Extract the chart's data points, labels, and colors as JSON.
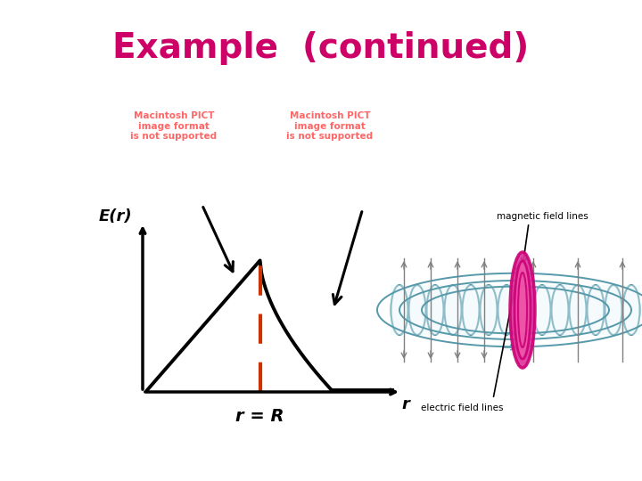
{
  "title": "Example  (continued)",
  "title_color": "#CC0066",
  "title_fontsize": 28,
  "bg_color": "#ffffff",
  "pict_text1": "Macintosh PICT\nimage format\nis not supported",
  "pict_text2": "Macintosh PICT\nimage format\nis not supported",
  "pict_color": "#FF6666",
  "Er_label": "E(r)",
  "r_label": "r",
  "rR_label": "r = R",
  "dashed_color": "#CC3300",
  "mag_label": "magnetic field lines",
  "elec_label": "electric field lines",
  "curve_color": "#000000",
  "coil_color": "#5599AA",
  "magenta_color": "#CC0077",
  "axis_lw": 2.5,
  "curve_lw": 2.8
}
